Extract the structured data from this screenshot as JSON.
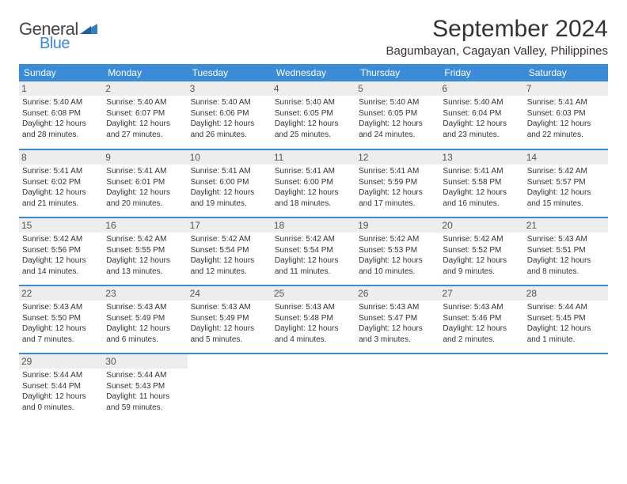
{
  "logo": {
    "text1": "General",
    "text2": "Blue",
    "tri_color": "#2f7fc9"
  },
  "header": {
    "month_title": "September 2024",
    "location": "Bagumbayan, Cagayan Valley, Philippines"
  },
  "colors": {
    "header_bg": "#3a8bd8",
    "header_text": "#ffffff",
    "row_border": "#3a8bd8",
    "daynum_bg": "#ededed",
    "body_text": "#333333"
  },
  "weekdays": [
    "Sunday",
    "Monday",
    "Tuesday",
    "Wednesday",
    "Thursday",
    "Friday",
    "Saturday"
  ],
  "weeks": [
    [
      {
        "n": "1",
        "sr": "5:40 AM",
        "ss": "6:08 PM",
        "dl1": "Daylight: 12 hours",
        "dl2": "and 28 minutes."
      },
      {
        "n": "2",
        "sr": "5:40 AM",
        "ss": "6:07 PM",
        "dl1": "Daylight: 12 hours",
        "dl2": "and 27 minutes."
      },
      {
        "n": "3",
        "sr": "5:40 AM",
        "ss": "6:06 PM",
        "dl1": "Daylight: 12 hours",
        "dl2": "and 26 minutes."
      },
      {
        "n": "4",
        "sr": "5:40 AM",
        "ss": "6:05 PM",
        "dl1": "Daylight: 12 hours",
        "dl2": "and 25 minutes."
      },
      {
        "n": "5",
        "sr": "5:40 AM",
        "ss": "6:05 PM",
        "dl1": "Daylight: 12 hours",
        "dl2": "and 24 minutes."
      },
      {
        "n": "6",
        "sr": "5:40 AM",
        "ss": "6:04 PM",
        "dl1": "Daylight: 12 hours",
        "dl2": "and 23 minutes."
      },
      {
        "n": "7",
        "sr": "5:41 AM",
        "ss": "6:03 PM",
        "dl1": "Daylight: 12 hours",
        "dl2": "and 22 minutes."
      }
    ],
    [
      {
        "n": "8",
        "sr": "5:41 AM",
        "ss": "6:02 PM",
        "dl1": "Daylight: 12 hours",
        "dl2": "and 21 minutes."
      },
      {
        "n": "9",
        "sr": "5:41 AM",
        "ss": "6:01 PM",
        "dl1": "Daylight: 12 hours",
        "dl2": "and 20 minutes."
      },
      {
        "n": "10",
        "sr": "5:41 AM",
        "ss": "6:00 PM",
        "dl1": "Daylight: 12 hours",
        "dl2": "and 19 minutes."
      },
      {
        "n": "11",
        "sr": "5:41 AM",
        "ss": "6:00 PM",
        "dl1": "Daylight: 12 hours",
        "dl2": "and 18 minutes."
      },
      {
        "n": "12",
        "sr": "5:41 AM",
        "ss": "5:59 PM",
        "dl1": "Daylight: 12 hours",
        "dl2": "and 17 minutes."
      },
      {
        "n": "13",
        "sr": "5:41 AM",
        "ss": "5:58 PM",
        "dl1": "Daylight: 12 hours",
        "dl2": "and 16 minutes."
      },
      {
        "n": "14",
        "sr": "5:42 AM",
        "ss": "5:57 PM",
        "dl1": "Daylight: 12 hours",
        "dl2": "and 15 minutes."
      }
    ],
    [
      {
        "n": "15",
        "sr": "5:42 AM",
        "ss": "5:56 PM",
        "dl1": "Daylight: 12 hours",
        "dl2": "and 14 minutes."
      },
      {
        "n": "16",
        "sr": "5:42 AM",
        "ss": "5:55 PM",
        "dl1": "Daylight: 12 hours",
        "dl2": "and 13 minutes."
      },
      {
        "n": "17",
        "sr": "5:42 AM",
        "ss": "5:54 PM",
        "dl1": "Daylight: 12 hours",
        "dl2": "and 12 minutes."
      },
      {
        "n": "18",
        "sr": "5:42 AM",
        "ss": "5:54 PM",
        "dl1": "Daylight: 12 hours",
        "dl2": "and 11 minutes."
      },
      {
        "n": "19",
        "sr": "5:42 AM",
        "ss": "5:53 PM",
        "dl1": "Daylight: 12 hours",
        "dl2": "and 10 minutes."
      },
      {
        "n": "20",
        "sr": "5:42 AM",
        "ss": "5:52 PM",
        "dl1": "Daylight: 12 hours",
        "dl2": "and 9 minutes."
      },
      {
        "n": "21",
        "sr": "5:43 AM",
        "ss": "5:51 PM",
        "dl1": "Daylight: 12 hours",
        "dl2": "and 8 minutes."
      }
    ],
    [
      {
        "n": "22",
        "sr": "5:43 AM",
        "ss": "5:50 PM",
        "dl1": "Daylight: 12 hours",
        "dl2": "and 7 minutes."
      },
      {
        "n": "23",
        "sr": "5:43 AM",
        "ss": "5:49 PM",
        "dl1": "Daylight: 12 hours",
        "dl2": "and 6 minutes."
      },
      {
        "n": "24",
        "sr": "5:43 AM",
        "ss": "5:49 PM",
        "dl1": "Daylight: 12 hours",
        "dl2": "and 5 minutes."
      },
      {
        "n": "25",
        "sr": "5:43 AM",
        "ss": "5:48 PM",
        "dl1": "Daylight: 12 hours",
        "dl2": "and 4 minutes."
      },
      {
        "n": "26",
        "sr": "5:43 AM",
        "ss": "5:47 PM",
        "dl1": "Daylight: 12 hours",
        "dl2": "and 3 minutes."
      },
      {
        "n": "27",
        "sr": "5:43 AM",
        "ss": "5:46 PM",
        "dl1": "Daylight: 12 hours",
        "dl2": "and 2 minutes."
      },
      {
        "n": "28",
        "sr": "5:44 AM",
        "ss": "5:45 PM",
        "dl1": "Daylight: 12 hours",
        "dl2": "and 1 minute."
      }
    ],
    [
      {
        "n": "29",
        "sr": "5:44 AM",
        "ss": "5:44 PM",
        "dl1": "Daylight: 12 hours",
        "dl2": "and 0 minutes."
      },
      {
        "n": "30",
        "sr": "5:44 AM",
        "ss": "5:43 PM",
        "dl1": "Daylight: 11 hours",
        "dl2": "and 59 minutes."
      },
      null,
      null,
      null,
      null,
      null
    ]
  ],
  "labels": {
    "sunrise_prefix": "Sunrise: ",
    "sunset_prefix": "Sunset: "
  }
}
